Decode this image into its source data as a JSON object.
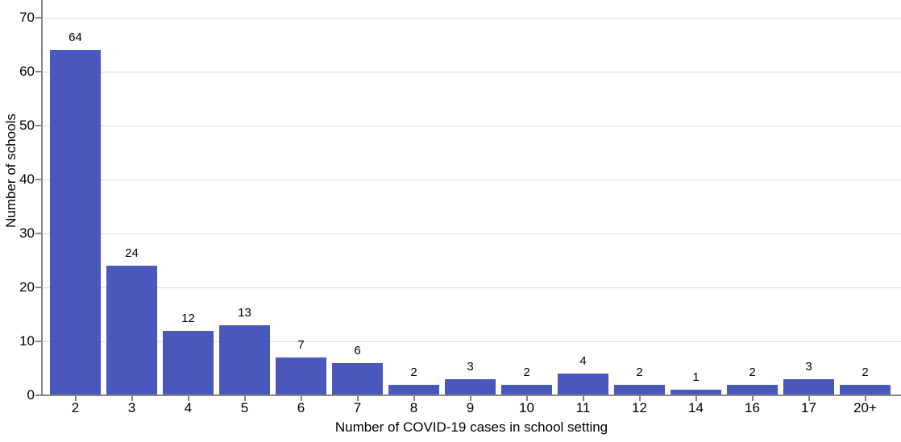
{
  "chart_data": {
    "type": "bar",
    "title": "",
    "categories": [
      "2",
      "3",
      "4",
      "5",
      "6",
      "7",
      "8",
      "9",
      "10",
      "11",
      "12",
      "14",
      "16",
      "17",
      "20+"
    ],
    "values": [
      64,
      24,
      12,
      13,
      7,
      6,
      2,
      3,
      2,
      4,
      2,
      1,
      2,
      3,
      2
    ],
    "xlabel": "Number of COVID-19 cases in school setting",
    "ylabel": "Number of schools",
    "yticks": [
      0,
      10,
      20,
      30,
      40,
      50,
      60,
      70
    ],
    "ylim": [
      0,
      73
    ],
    "grid": "horizontal-major-only",
    "legend": "none",
    "bar_color": "#4a57bb",
    "grid_color": "#d9d9d9",
    "axis_color": "#858585",
    "text_color": "#000000"
  }
}
